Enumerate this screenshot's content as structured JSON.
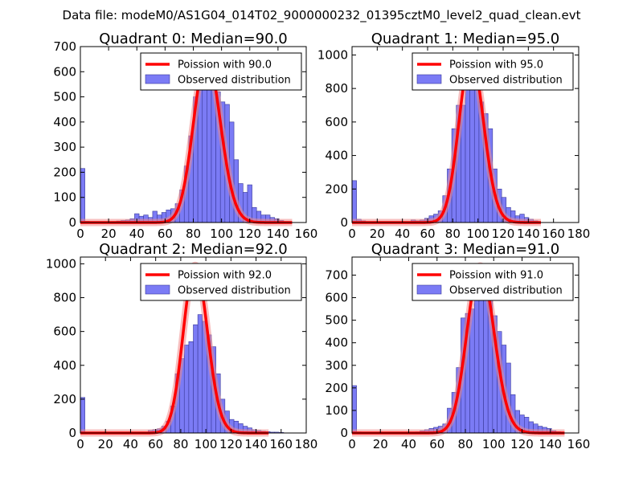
{
  "figure_title": "Data file: modeM0/AS1G04_014T02_9000000232_01395cztM0_level2_quad_clean.evt",
  "colors": {
    "bar_fill": "#7b7bf5",
    "bar_edge": "#3a3a9a",
    "curve": "#ff0000",
    "curve_under": "#f08a8a"
  },
  "chart_data": [
    {
      "type": "bar",
      "title": "Quadrant 0: Median=90.0",
      "xlim": [
        0,
        160
      ],
      "ylim": [
        0,
        700
      ],
      "bin_width": 3.2,
      "xticks": [
        0,
        20,
        40,
        60,
        80,
        100,
        120,
        140,
        160
      ],
      "yticks": [
        0,
        100,
        200,
        300,
        400,
        500,
        600,
        700
      ],
      "legend": [
        "Poission with 90.0",
        "Observed distribution"
      ],
      "poisson_mean": 90.0,
      "poisson_peak": 660,
      "histogram": [
        [
          0,
          215
        ],
        [
          3.2,
          5
        ],
        [
          19.2,
          3
        ],
        [
          22.4,
          4
        ],
        [
          25.6,
          6
        ],
        [
          28.8,
          8
        ],
        [
          32,
          10
        ],
        [
          35.2,
          15
        ],
        [
          38.4,
          35
        ],
        [
          41.6,
          25
        ],
        [
          44.8,
          30
        ],
        [
          48,
          20
        ],
        [
          51.2,
          45
        ],
        [
          54.4,
          30
        ],
        [
          57.6,
          40
        ],
        [
          60.8,
          50
        ],
        [
          64,
          55
        ],
        [
          67.2,
          75
        ],
        [
          70.4,
          130
        ],
        [
          73.6,
          225
        ],
        [
          76.8,
          345
        ],
        [
          80,
          500
        ],
        [
          83.2,
          555
        ],
        [
          86.4,
          530
        ],
        [
          89.6,
          650
        ],
        [
          92.8,
          560
        ],
        [
          96,
          520
        ],
        [
          99.2,
          480
        ],
        [
          102.4,
          470
        ],
        [
          105.6,
          400
        ],
        [
          108.8,
          250
        ],
        [
          112,
          155
        ],
        [
          115.2,
          120
        ],
        [
          118.4,
          150
        ],
        [
          121.6,
          60
        ],
        [
          124.8,
          45
        ],
        [
          128,
          30
        ],
        [
          131.2,
          30
        ],
        [
          134.4,
          20
        ],
        [
          137.6,
          15
        ],
        [
          140.8,
          8
        ],
        [
          144,
          4
        ]
      ]
    },
    {
      "type": "bar",
      "title": "Quadrant 1: Median=95.0",
      "xlim": [
        0,
        180
      ],
      "ylim": [
        0,
        1050
      ],
      "bin_width": 3.6,
      "xticks": [
        0,
        20,
        40,
        60,
        80,
        100,
        120,
        140,
        160,
        180
      ],
      "yticks": [
        0,
        200,
        400,
        600,
        800,
        1000
      ],
      "legend": [
        "Poission with 95.0",
        "Observed distribution"
      ],
      "poisson_mean": 95.0,
      "poisson_peak": 990,
      "histogram": [
        [
          0,
          250
        ],
        [
          3.6,
          20
        ],
        [
          7.2,
          10
        ],
        [
          46.8,
          15
        ],
        [
          50.4,
          10
        ],
        [
          54,
          15
        ],
        [
          57.6,
          25
        ],
        [
          61.2,
          40
        ],
        [
          64.8,
          50
        ],
        [
          68.4,
          70
        ],
        [
          72,
          160
        ],
        [
          75.6,
          320
        ],
        [
          79.2,
          560
        ],
        [
          82.8,
          700
        ],
        [
          86.4,
          700
        ],
        [
          90,
          890
        ],
        [
          93.6,
          1000
        ],
        [
          97.2,
          1000
        ],
        [
          100.8,
          720
        ],
        [
          104.4,
          650
        ],
        [
          108,
          560
        ],
        [
          111.6,
          320
        ],
        [
          115.2,
          200
        ],
        [
          118.8,
          150
        ],
        [
          122.4,
          90
        ],
        [
          126,
          70
        ],
        [
          129.6,
          40
        ],
        [
          133.2,
          50
        ],
        [
          136.8,
          30
        ],
        [
          140.4,
          20
        ],
        [
          144,
          10
        ]
      ]
    },
    {
      "type": "bar",
      "title": "Quadrant 2: Median=92.0",
      "xlim": [
        0,
        180
      ],
      "ylim": [
        0,
        1040
      ],
      "bin_width": 3.6,
      "xticks": [
        0,
        20,
        40,
        60,
        80,
        100,
        120,
        140,
        160,
        180
      ],
      "yticks": [
        0,
        200,
        400,
        600,
        800,
        1000
      ],
      "legend": [
        "Poission with 92.0",
        "Observed distribution"
      ],
      "poisson_mean": 92.0,
      "poisson_peak": 990,
      "histogram": [
        [
          0,
          210
        ],
        [
          3.6,
          5
        ],
        [
          54,
          15
        ],
        [
          57.6,
          20
        ],
        [
          61.2,
          25
        ],
        [
          64.8,
          40
        ],
        [
          68.4,
          70
        ],
        [
          72,
          160
        ],
        [
          75.6,
          350
        ],
        [
          79.2,
          440
        ],
        [
          82.8,
          520
        ],
        [
          86.4,
          540
        ],
        [
          90,
          640
        ],
        [
          93.6,
          700
        ],
        [
          97.2,
          660
        ],
        [
          100.8,
          580
        ],
        [
          104.4,
          510
        ],
        [
          108,
          350
        ],
        [
          111.6,
          200
        ],
        [
          115.2,
          130
        ],
        [
          118.8,
          80
        ],
        [
          122.4,
          70
        ],
        [
          126,
          55
        ],
        [
          129.6,
          40
        ],
        [
          133.2,
          30
        ],
        [
          136.8,
          20
        ],
        [
          140.4,
          15
        ],
        [
          144,
          10
        ],
        [
          147.6,
          8
        ],
        [
          151.2,
          5
        ],
        [
          154.8,
          5
        ],
        [
          158.4,
          3
        ]
      ]
    },
    {
      "type": "bar",
      "title": "Quadrant 3: Median=91.0",
      "xlim": [
        0,
        160
      ],
      "ylim": [
        0,
        780
      ],
      "bin_width": 3.2,
      "xticks": [
        0,
        20,
        40,
        60,
        80,
        100,
        120,
        140,
        160
      ],
      "yticks": [
        0,
        100,
        200,
        300,
        400,
        500,
        600,
        700
      ],
      "legend": [
        "Poission with 91.0",
        "Observed distribution"
      ],
      "poisson_mean": 91.0,
      "poisson_peak": 740,
      "histogram": [
        [
          0,
          210
        ],
        [
          3.2,
          5
        ],
        [
          44.8,
          5
        ],
        [
          48,
          10
        ],
        [
          51.2,
          15
        ],
        [
          54.4,
          20
        ],
        [
          57.6,
          25
        ],
        [
          60.8,
          30
        ],
        [
          64,
          40
        ],
        [
          67.2,
          110
        ],
        [
          70.4,
          180
        ],
        [
          73.6,
          290
        ],
        [
          76.8,
          510
        ],
        [
          80,
          530
        ],
        [
          83.2,
          550
        ],
        [
          86.4,
          680
        ],
        [
          89.6,
          670
        ],
        [
          92.8,
          600
        ],
        [
          96,
          590
        ],
        [
          99.2,
          520
        ],
        [
          102.4,
          450
        ],
        [
          105.6,
          390
        ],
        [
          108.8,
          310
        ],
        [
          112,
          170
        ],
        [
          115.2,
          100
        ],
        [
          118.4,
          80
        ],
        [
          121.6,
          70
        ],
        [
          124.8,
          50
        ],
        [
          128,
          40
        ],
        [
          131.2,
          30
        ],
        [
          134.4,
          25
        ],
        [
          137.6,
          20
        ],
        [
          140.8,
          10
        ],
        [
          144,
          6
        ]
      ]
    }
  ]
}
